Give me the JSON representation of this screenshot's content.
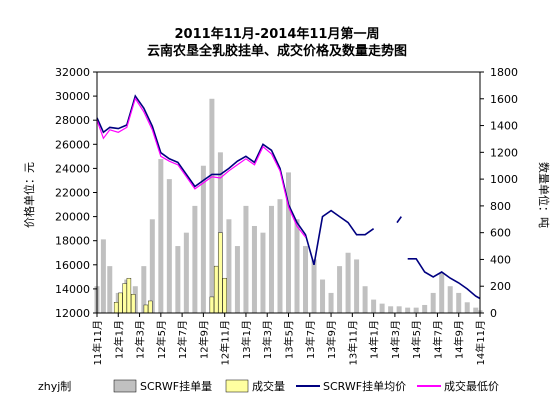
{
  "chart_data": {
    "type": "bar+line",
    "title_line1": "2011年11月-2014年11月第一周",
    "title_line2": "云南农垦全乳胶挂单、成交价格及数量走势图",
    "ylabel_left": "价格单位：元",
    "ylabel_right": "数量单位：吨",
    "ylim_left": [
      12000,
      32000
    ],
    "ylim_right": [
      0,
      1800
    ],
    "yticks_left": [
      12000,
      14000,
      16000,
      18000,
      20000,
      22000,
      24000,
      26000,
      28000,
      30000,
      32000
    ],
    "yticks_right": [
      0,
      200,
      400,
      600,
      800,
      1000,
      1200,
      1400,
      1600,
      1800
    ],
    "x_categories": [
      "11年11月",
      "12年1月",
      "12年3月",
      "12年5月",
      "12年7月",
      "12年9月",
      "12年11月",
      "13年1月",
      "13年3月",
      "13年5月",
      "13年7月",
      "13年9月",
      "13年11月",
      "14年1月",
      "14年3月",
      "14年5月",
      "14年7月",
      "14年9月",
      "14年11月"
    ],
    "legend_author": "zhyj制",
    "grid": false,
    "legend_position": "bottom",
    "series": [
      {
        "name": "SCRWF挂单量",
        "kind": "bar",
        "axis": "right",
        "color": "#c0c0c0",
        "x": [
          0,
          0.3,
          0.6,
          1,
          1.4,
          1.8,
          2.2,
          2.6,
          3,
          3.4,
          3.8,
          4.2,
          4.6,
          5,
          5.4,
          5.8,
          6.2,
          6.6,
          7,
          7.4,
          7.8,
          8.2,
          8.6,
          9,
          9.4,
          9.8,
          10.2,
          10.6,
          11,
          11.4,
          11.8,
          12.2,
          12.6,
          13,
          13.4,
          13.8,
          14.2,
          14.6,
          15,
          15.4,
          15.8,
          16.2,
          16.6,
          17,
          17.4,
          17.8,
          18
        ],
        "values": [
          200,
          550,
          350,
          150,
          250,
          200,
          350,
          700,
          1150,
          1000,
          500,
          600,
          800,
          1100,
          1600,
          1200,
          700,
          500,
          800,
          650,
          600,
          800,
          850,
          1050,
          700,
          500,
          400,
          250,
          150,
          350,
          450,
          400,
          200,
          100,
          70,
          50,
          50,
          40,
          40,
          60,
          150,
          300,
          200,
          150,
          80,
          40,
          20
        ]
      },
      {
        "name": "成交量",
        "kind": "bar",
        "axis": "right",
        "color": "#ffffa0",
        "x": [
          0.9,
          1.1,
          1.3,
          1.5,
          1.7,
          2.3,
          2.5,
          5.4,
          5.6,
          5.8,
          6.0
        ],
        "values": [
          80,
          150,
          220,
          260,
          140,
          60,
          90,
          120,
          350,
          600,
          260
        ]
      },
      {
        "name": "SCRWF挂单均价",
        "kind": "line",
        "axis": "left",
        "color": "#000080",
        "segments": [
          {
            "x": [
              0,
              0.3,
              0.6,
              1,
              1.4,
              1.8,
              2.2,
              2.6,
              3,
              3.4,
              3.8,
              4.2,
              4.6,
              5,
              5.4,
              5.8,
              6.2,
              6.6,
              7,
              7.4,
              7.8,
              8.2,
              8.6,
              9,
              9.4,
              9.8,
              10.2,
              10.6,
              11,
              11.4,
              11.8,
              12.2,
              12.6,
              13
            ],
            "y": [
              28200,
              27000,
              27400,
              27300,
              27600,
              30000,
              29000,
              27500,
              25300,
              24800,
              24500,
              23500,
              22500,
              23000,
              23500,
              23500,
              24000,
              24600,
              25000,
              24500,
              26000,
              25500,
              24000,
              21000,
              19500,
              18500,
              16000,
              20000,
              20500,
              20000,
              19500,
              18500,
              18500,
              19000
            ]
          },
          {
            "x": [
              14.1,
              14.3
            ],
            "y": [
              19500,
              20000
            ]
          },
          {
            "x": [
              14.6,
              15.0,
              15.4,
              15.8,
              16.2,
              16.6,
              17,
              17.4,
              17.8,
              18.0
            ],
            "y": [
              16500,
              16500,
              15400,
              15000,
              15400,
              14900,
              14500,
              14000,
              13400,
              13200
            ]
          }
        ]
      },
      {
        "name": "成交最低价",
        "kind": "line",
        "axis": "left",
        "color": "#ff00ff",
        "segments": [
          {
            "x": [
              0,
              0.3,
              0.6,
              1,
              1.4,
              1.8,
              2.2,
              2.6,
              3,
              3.4,
              3.8,
              4.2,
              4.6,
              5,
              5.4,
              5.8,
              6.2,
              6.6,
              7,
              7.4,
              7.8,
              8.2,
              8.6,
              9,
              9.4,
              9.8
            ],
            "y": [
              28000,
              26500,
              27200,
              27000,
              27400,
              29800,
              28700,
              27200,
              25000,
              24600,
              24300,
              23300,
              22300,
              22800,
              23300,
              23200,
              23800,
              24300,
              24800,
              24300,
              25800,
              25200,
              23800,
              20800,
              19200,
              18300
            ]
          }
        ]
      }
    ]
  }
}
